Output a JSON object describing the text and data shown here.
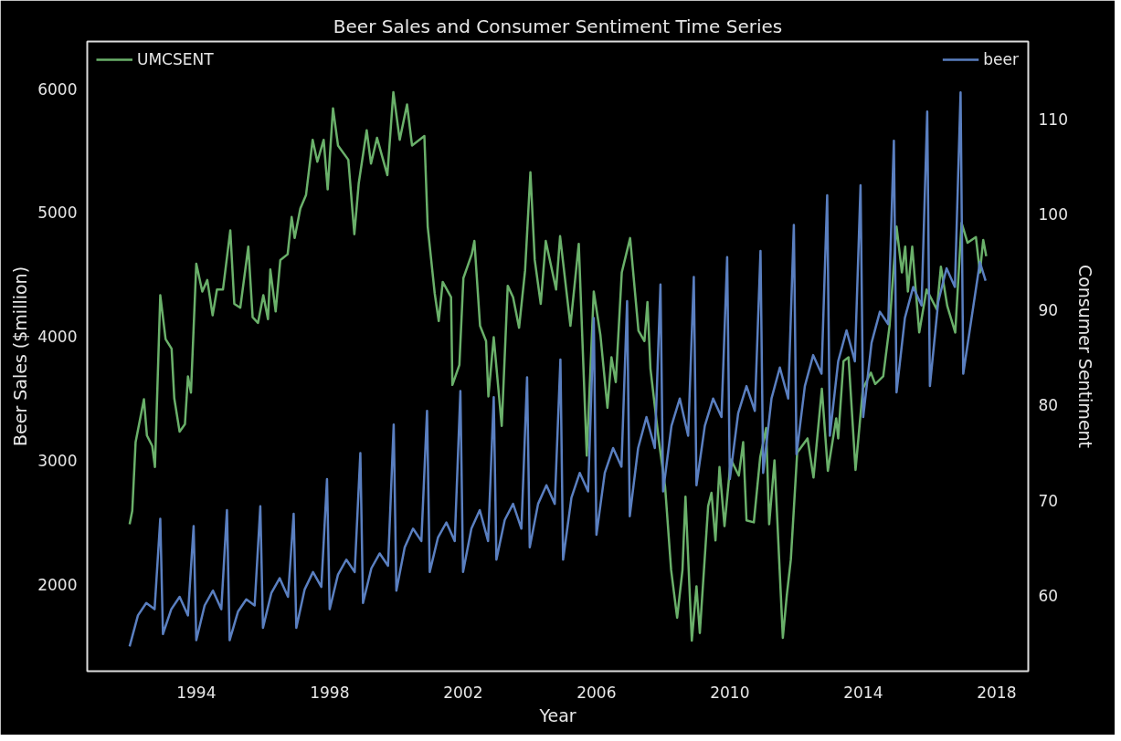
{
  "chart_data": {
    "type": "line",
    "title": "Beer Sales and Consumer Sentiment Time Series",
    "xlabel": "Year",
    "ylabel": "Beer Sales ($million)",
    "y2label": "Consumer Sentiment",
    "xlim": [
      1990.73,
      2018.95
    ],
    "xticks": [
      1994,
      1998,
      2002,
      2006,
      2010,
      2014,
      2018
    ],
    "ylim": [
      1300,
      6380
    ],
    "yticks": [
      2000,
      3000,
      4000,
      5000,
      6000
    ],
    "y2lim": [
      52.1,
      118.1
    ],
    "y2ticks": [
      60,
      70,
      80,
      90,
      100,
      110
    ],
    "grid": false,
    "legend": "top",
    "line_style": "solid",
    "marker": "none",
    "series": [
      {
        "name": "UMCSENT",
        "color": "#6ab06a",
        "axis": "y2",
        "x": [
          1992.0,
          1992.08,
          1992.18,
          1992.43,
          1992.52,
          1992.68,
          1992.76,
          1992.92,
          1993.08,
          1993.26,
          1993.34,
          1993.5,
          1993.66,
          1993.75,
          1993.84,
          1994.0,
          1994.18,
          1994.33,
          1994.49,
          1994.62,
          1994.8,
          1995.02,
          1995.14,
          1995.32,
          1995.56,
          1995.69,
          1995.85,
          1996.01,
          1996.15,
          1996.22,
          1996.38,
          1996.52,
          1996.74,
          1996.86,
          1996.95,
          1997.12,
          1997.29,
          1997.49,
          1997.63,
          1997.82,
          1997.94,
          1998.1,
          1998.25,
          1998.56,
          1998.74,
          1998.87,
          1999.11,
          1999.24,
          1999.42,
          1999.73,
          1999.91,
          2000.1,
          2000.32,
          2000.47,
          2000.84,
          2000.94,
          2001.15,
          2001.27,
          2001.39,
          2001.64,
          2001.68,
          2001.89,
          2002.01,
          2002.26,
          2002.34,
          2002.51,
          2002.69,
          2002.76,
          2002.92,
          2003.16,
          2003.34,
          2003.5,
          2003.68,
          2003.86,
          2004.02,
          2004.15,
          2004.33,
          2004.48,
          2004.79,
          2004.91,
          2005.22,
          2005.47,
          2005.71,
          2005.92,
          2006.12,
          2006.33,
          2006.45,
          2006.58,
          2006.76,
          2007.01,
          2007.26,
          2007.44,
          2007.53,
          2007.62,
          2007.87,
          2008.06,
          2008.24,
          2008.42,
          2008.58,
          2008.67,
          2008.86,
          2009.0,
          2009.1,
          2009.35,
          2009.45,
          2009.57,
          2009.69,
          2009.84,
          2010.03,
          2010.27,
          2010.4,
          2010.5,
          2010.72,
          2010.91,
          2011.09,
          2011.18,
          2011.34,
          2011.59,
          2011.71,
          2011.83,
          2012.02,
          2012.33,
          2012.51,
          2012.76,
          2012.94,
          2013.19,
          2013.25,
          2013.41,
          2013.56,
          2013.77,
          2013.99,
          2014.23,
          2014.36,
          2014.6,
          2014.79,
          2015.0,
          2015.16,
          2015.26,
          2015.34,
          2015.47,
          2015.68,
          2015.9,
          2016.21,
          2016.33,
          2016.52,
          2016.76,
          2016.95,
          2017.13,
          2017.38,
          2017.5,
          2017.6,
          2017.69
        ],
        "values": [
          67.5,
          68.9,
          76.1,
          80.6,
          76.8,
          75.7,
          73.5,
          91.5,
          86.9,
          85.9,
          80.7,
          77.2,
          78.0,
          83.0,
          81.3,
          94.8,
          91.9,
          93.1,
          89.4,
          92.1,
          92.1,
          98.3,
          90.6,
          90.2,
          96.6,
          89.2,
          88.6,
          91.5,
          89.0,
          94.2,
          89.8,
          95.2,
          95.8,
          99.7,
          97.5,
          100.6,
          102.0,
          107.8,
          105.5,
          107.8,
          102.6,
          111.1,
          107.2,
          105.7,
          97.9,
          103.2,
          108.8,
          105.3,
          108.0,
          104.1,
          112.8,
          107.8,
          111.5,
          107.2,
          108.2,
          98.7,
          91.7,
          88.8,
          92.9,
          91.3,
          82.1,
          84.2,
          93.3,
          95.8,
          97.2,
          88.3,
          86.7,
          80.9,
          87.1,
          77.8,
          92.5,
          91.3,
          88.1,
          94.1,
          104.4,
          95.2,
          90.6,
          97.2,
          92.1,
          97.7,
          88.3,
          96.9,
          74.7,
          91.9,
          87.3,
          79.7,
          85.0,
          82.4,
          93.9,
          97.5,
          87.8,
          86.7,
          90.8,
          83.8,
          76.3,
          71.4,
          62.7,
          57.7,
          62.7,
          70.4,
          55.3,
          61.0,
          56.1,
          69.4,
          70.8,
          65.8,
          73.5,
          67.3,
          74.3,
          72.6,
          76.1,
          67.9,
          67.7,
          74.5,
          77.6,
          67.5,
          74.2,
          55.6,
          60.1,
          63.8,
          75.0,
          76.5,
          72.4,
          81.7,
          73.1,
          78.6,
          76.5,
          84.6,
          85.0,
          73.2,
          81.7,
          83.4,
          82.2,
          83.0,
          88.3,
          98.7,
          93.9,
          96.6,
          91.9,
          96.6,
          87.6,
          92.1,
          90.0,
          94.5,
          90.4,
          87.6,
          99.1,
          97.0,
          97.6,
          93.9,
          97.3,
          95.6
        ]
      },
      {
        "name": "beer",
        "color": "#5a7fc0",
        "axis": "y",
        "x": [
          1992.0,
          1992.25,
          1992.5,
          1992.75,
          1992.92,
          1993.0,
          1993.25,
          1993.5,
          1993.75,
          1993.92,
          1994.0,
          1994.25,
          1994.5,
          1994.75,
          1994.92,
          1995.0,
          1995.25,
          1995.5,
          1995.75,
          1995.92,
          1996.0,
          1996.25,
          1996.5,
          1996.75,
          1996.92,
          1997.0,
          1997.25,
          1997.5,
          1997.75,
          1997.92,
          1998.0,
          1998.25,
          1998.5,
          1998.75,
          1998.92,
          1999.0,
          1999.25,
          1999.5,
          1999.75,
          1999.92,
          2000.0,
          2000.25,
          2000.5,
          2000.75,
          2000.92,
          2001.0,
          2001.25,
          2001.5,
          2001.75,
          2001.92,
          2002.0,
          2002.25,
          2002.5,
          2002.75,
          2002.92,
          2003.0,
          2003.25,
          2003.5,
          2003.75,
          2003.92,
          2004.0,
          2004.25,
          2004.5,
          2004.75,
          2004.92,
          2005.0,
          2005.25,
          2005.5,
          2005.75,
          2005.92,
          2006.0,
          2006.25,
          2006.5,
          2006.75,
          2006.92,
          2007.0,
          2007.25,
          2007.5,
          2007.75,
          2007.92,
          2008.0,
          2008.25,
          2008.5,
          2008.75,
          2008.92,
          2009.0,
          2009.25,
          2009.5,
          2009.75,
          2009.92,
          2010.0,
          2010.25,
          2010.5,
          2010.75,
          2010.92,
          2011.0,
          2011.25,
          2011.5,
          2011.75,
          2011.92,
          2012.0,
          2012.25,
          2012.5,
          2012.75,
          2012.92,
          2013.0,
          2013.25,
          2013.5,
          2013.75,
          2013.92,
          2014.0,
          2014.25,
          2014.5,
          2014.75,
          2014.92,
          2015.0,
          2015.25,
          2015.5,
          2015.75,
          2015.92,
          2016.0,
          2016.25,
          2016.5,
          2016.75,
          2016.92,
          2017.0,
          2017.25,
          2017.5,
          2017.67
        ],
        "values": [
          1500,
          1750,
          1850,
          1800,
          2530,
          1600,
          1800,
          1900,
          1750,
          2470,
          1550,
          1830,
          1950,
          1800,
          2600,
          1550,
          1780,
          1880,
          1830,
          2630,
          1650,
          1930,
          2050,
          1900,
          2570,
          1650,
          1960,
          2100,
          1980,
          2850,
          1800,
          2080,
          2200,
          2100,
          3060,
          1850,
          2130,
          2250,
          2150,
          3290,
          1950,
          2300,
          2450,
          2350,
          3400,
          2100,
          2380,
          2500,
          2350,
          3560,
          2100,
          2450,
          2600,
          2350,
          3510,
          2200,
          2520,
          2650,
          2450,
          3670,
          2300,
          2650,
          2800,
          2650,
          3815,
          2200,
          2700,
          2900,
          2750,
          4150,
          2400,
          2900,
          3100,
          2950,
          4285,
          2550,
          3100,
          3350,
          3100,
          4420,
          2750,
          3280,
          3500,
          3200,
          4480,
          2800,
          3280,
          3500,
          3350,
          4640,
          2850,
          3380,
          3600,
          3400,
          4690,
          2900,
          3500,
          3750,
          3500,
          4900,
          3050,
          3600,
          3850,
          3700,
          5140,
          3200,
          3800,
          4050,
          3800,
          5220,
          3350,
          3950,
          4200,
          4100,
          5580,
          3550,
          4150,
          4400,
          4250,
          5815,
          3600,
          4280,
          4550,
          4400,
          5970,
          3700,
          4150,
          4600,
          4450
        ]
      }
    ]
  }
}
